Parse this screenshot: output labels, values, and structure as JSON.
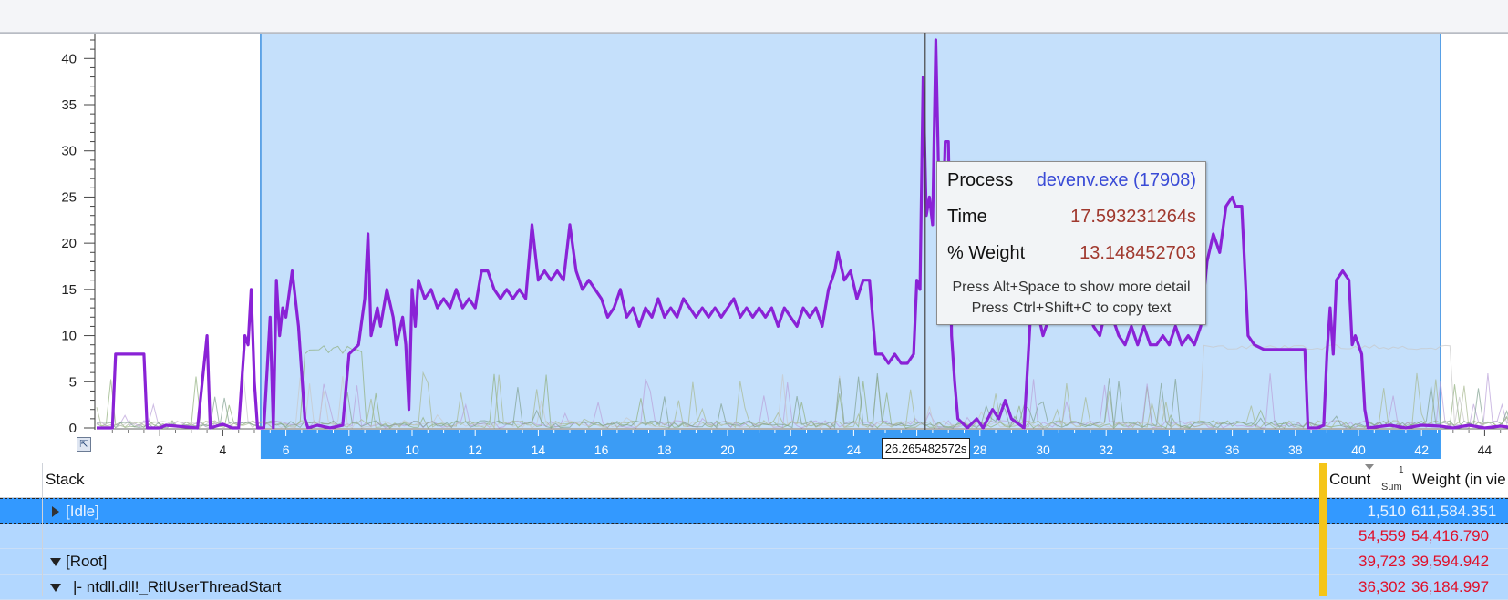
{
  "colors": {
    "selection_band": "#c5e0fb",
    "main_series": "#8a22d6",
    "axis_strip": "#3b9cf5",
    "highlight_column": "#f5c518",
    "tooltip_value": "#a0392e",
    "tooltip_process": "#3a4bd6"
  },
  "chart_data": {
    "type": "line",
    "title": "",
    "xlabel": "",
    "ylabel": "",
    "xlim": [
      0.0,
      45.0
    ],
    "ylim": [
      0,
      42
    ],
    "y_ticks": [
      "0",
      "5",
      "10",
      "15",
      "20",
      "25",
      "30",
      "35",
      "40"
    ],
    "x_ticks": [
      "2",
      "4",
      "6",
      "8",
      "10",
      "12",
      "14",
      "16",
      "18",
      "20",
      "22",
      "24",
      "26",
      "28",
      "30",
      "32",
      "34",
      "36",
      "38",
      "40",
      "42",
      "44"
    ],
    "selection_range": [
      5.2,
      42.6
    ],
    "cursor_time": 26.265482572,
    "series": [
      {
        "color": "#8a22d6",
        "points": [
          [
            0,
            0
          ],
          [
            0.5,
            0
          ],
          [
            0.6,
            8
          ],
          [
            1.5,
            8
          ],
          [
            1.6,
            0
          ],
          [
            2.0,
            0
          ],
          [
            2.2,
            0.3
          ],
          [
            3.2,
            0
          ],
          [
            3.5,
            10
          ],
          [
            3.6,
            0
          ],
          [
            4.0,
            0.4
          ],
          [
            4.3,
            0
          ],
          [
            4.5,
            0
          ],
          [
            4.7,
            10
          ],
          [
            4.8,
            9
          ],
          [
            4.9,
            15
          ],
          [
            5.0,
            5
          ],
          [
            5.1,
            0
          ],
          [
            5.3,
            0
          ],
          [
            5.5,
            12
          ],
          [
            5.6,
            0
          ],
          [
            5.7,
            16
          ],
          [
            5.8,
            10
          ],
          [
            5.9,
            13
          ],
          [
            6.0,
            12
          ],
          [
            6.2,
            17
          ],
          [
            6.4,
            11
          ],
          [
            6.6,
            1
          ],
          [
            6.7,
            0
          ],
          [
            7.0,
            0.3
          ],
          [
            7.4,
            0
          ],
          [
            7.8,
            0.3
          ],
          [
            8.0,
            8
          ],
          [
            8.3,
            9
          ],
          [
            8.5,
            14
          ],
          [
            8.6,
            21
          ],
          [
            8.7,
            10
          ],
          [
            8.9,
            13
          ],
          [
            9.0,
            11
          ],
          [
            9.2,
            15
          ],
          [
            9.4,
            12
          ],
          [
            9.5,
            9
          ],
          [
            9.7,
            12
          ],
          [
            9.8,
            9
          ],
          [
            9.9,
            2
          ],
          [
            10.0,
            15
          ],
          [
            10.1,
            11
          ],
          [
            10.2,
            16
          ],
          [
            10.4,
            14
          ],
          [
            10.6,
            15
          ],
          [
            10.8,
            13
          ],
          [
            11.0,
            14
          ],
          [
            11.2,
            13
          ],
          [
            11.4,
            15
          ],
          [
            11.6,
            13
          ],
          [
            11.8,
            14
          ],
          [
            12.0,
            13
          ],
          [
            12.2,
            17
          ],
          [
            12.4,
            17
          ],
          [
            12.6,
            15
          ],
          [
            12.8,
            14
          ],
          [
            13.0,
            15
          ],
          [
            13.2,
            14
          ],
          [
            13.4,
            15
          ],
          [
            13.6,
            14
          ],
          [
            13.8,
            22
          ],
          [
            14.0,
            16
          ],
          [
            14.2,
            17
          ],
          [
            14.4,
            16
          ],
          [
            14.6,
            17
          ],
          [
            14.8,
            16
          ],
          [
            15.0,
            22
          ],
          [
            15.2,
            17
          ],
          [
            15.4,
            15
          ],
          [
            15.6,
            16
          ],
          [
            15.8,
            15
          ],
          [
            16.0,
            14
          ],
          [
            16.2,
            12
          ],
          [
            16.4,
            13
          ],
          [
            16.6,
            15
          ],
          [
            16.8,
            12
          ],
          [
            17.0,
            13
          ],
          [
            17.2,
            11
          ],
          [
            17.4,
            13
          ],
          [
            17.6,
            12
          ],
          [
            17.8,
            14
          ],
          [
            18.0,
            12
          ],
          [
            18.2,
            13
          ],
          [
            18.4,
            12
          ],
          [
            18.6,
            14
          ],
          [
            18.8,
            13
          ],
          [
            19.0,
            12
          ],
          [
            19.2,
            13
          ],
          [
            19.4,
            12
          ],
          [
            19.6,
            13
          ],
          [
            19.8,
            12
          ],
          [
            20.0,
            13
          ],
          [
            20.2,
            14
          ],
          [
            20.4,
            12
          ],
          [
            20.6,
            13
          ],
          [
            20.8,
            12
          ],
          [
            21.0,
            13
          ],
          [
            21.2,
            12
          ],
          [
            21.4,
            13
          ],
          [
            21.6,
            11
          ],
          [
            21.8,
            13
          ],
          [
            22.0,
            12
          ],
          [
            22.2,
            11
          ],
          [
            22.4,
            13
          ],
          [
            22.6,
            12
          ],
          [
            22.8,
            13
          ],
          [
            23.0,
            11
          ],
          [
            23.2,
            15
          ],
          [
            23.4,
            17
          ],
          [
            23.5,
            19
          ],
          [
            23.7,
            16
          ],
          [
            23.9,
            17
          ],
          [
            24.1,
            14
          ],
          [
            24.3,
            16
          ],
          [
            24.5,
            16
          ],
          [
            24.7,
            8
          ],
          [
            24.9,
            8
          ],
          [
            25.1,
            7
          ],
          [
            25.3,
            8
          ],
          [
            25.5,
            7
          ],
          [
            25.7,
            7
          ],
          [
            25.9,
            8
          ],
          [
            26.0,
            16
          ],
          [
            26.1,
            15
          ],
          [
            26.2,
            38
          ],
          [
            26.3,
            23
          ],
          [
            26.4,
            25
          ],
          [
            26.5,
            22
          ],
          [
            26.6,
            42
          ],
          [
            26.7,
            26
          ],
          [
            26.8,
            19
          ],
          [
            26.9,
            31
          ],
          [
            27.0,
            31
          ],
          [
            27.1,
            10
          ],
          [
            27.2,
            5
          ],
          [
            27.3,
            1
          ],
          [
            27.6,
            0
          ],
          [
            27.9,
            1
          ],
          [
            28.1,
            0
          ],
          [
            28.4,
            2
          ],
          [
            28.6,
            1
          ],
          [
            28.8,
            3
          ],
          [
            29.0,
            1
          ],
          [
            29.2,
            0.5
          ],
          [
            29.4,
            0
          ],
          [
            29.6,
            12
          ],
          [
            29.8,
            13
          ],
          [
            30.0,
            10
          ],
          [
            30.2,
            12
          ],
          [
            30.4,
            13
          ],
          [
            30.6,
            12
          ],
          [
            30.8,
            14
          ],
          [
            31.0,
            13
          ],
          [
            31.2,
            15
          ],
          [
            31.4,
            13
          ],
          [
            31.6,
            11
          ],
          [
            31.8,
            10
          ],
          [
            32.0,
            13
          ],
          [
            32.2,
            12
          ],
          [
            32.4,
            10
          ],
          [
            32.6,
            9
          ],
          [
            32.8,
            11
          ],
          [
            33.0,
            9
          ],
          [
            33.2,
            11
          ],
          [
            33.4,
            9
          ],
          [
            33.6,
            9
          ],
          [
            33.8,
            10
          ],
          [
            34.0,
            9
          ],
          [
            34.2,
            11
          ],
          [
            34.4,
            9
          ],
          [
            34.6,
            10
          ],
          [
            34.8,
            9
          ],
          [
            35.0,
            11
          ],
          [
            35.2,
            18
          ],
          [
            35.4,
            21
          ],
          [
            35.6,
            19
          ],
          [
            35.8,
            24
          ],
          [
            36.0,
            25
          ],
          [
            36.1,
            24
          ],
          [
            36.3,
            24
          ],
          [
            36.5,
            10
          ],
          [
            36.7,
            9
          ],
          [
            37.0,
            8.5
          ],
          [
            37.5,
            8.5
          ],
          [
            38.0,
            8.5
          ],
          [
            38.3,
            8.5
          ],
          [
            38.4,
            0
          ],
          [
            38.7,
            0
          ],
          [
            38.9,
            0.3
          ],
          [
            39.0,
            8
          ],
          [
            39.1,
            13
          ],
          [
            39.2,
            8
          ],
          [
            39.3,
            16
          ],
          [
            39.5,
            17
          ],
          [
            39.7,
            16
          ],
          [
            39.8,
            9
          ],
          [
            39.9,
            10
          ],
          [
            40.0,
            9
          ],
          [
            40.1,
            8
          ],
          [
            40.2,
            2
          ],
          [
            40.3,
            0
          ],
          [
            41.0,
            0.3
          ],
          [
            41.5,
            0
          ],
          [
            42.0,
            0.3
          ],
          [
            42.6,
            0.2
          ],
          [
            43.0,
            0
          ],
          [
            43.5,
            0.3
          ],
          [
            44.0,
            0
          ],
          [
            44.5,
            0.2
          ],
          [
            45.0,
            0
          ]
        ]
      }
    ]
  },
  "graph": {
    "cursor_label": "26.265482572s",
    "zoom_icon": "zoom-to-fit-icon"
  },
  "tooltip": {
    "process_label": "Process",
    "process_value": "devenv.exe (17908)",
    "time_label": "Time",
    "time_value": "17.593231264s",
    "weight_label": "% Weight",
    "weight_value": "13.148452703",
    "hint1": "Press Alt+Space to show more detail",
    "hint2": "Press Ctrl+Shift+C to copy text"
  },
  "table": {
    "headers": {
      "stack": "Stack",
      "count": "Count",
      "count_sort_rank": "1",
      "count_agg": "Sum",
      "weight": "Weight (in vie"
    },
    "rows": [
      {
        "stack": "[Idle]",
        "count": "1,510",
        "weight": "611,584.351",
        "selected": true,
        "expander": "collapsed"
      },
      {
        "stack": "",
        "count": "54,559",
        "weight": "54,416.790",
        "selected": false,
        "expander": "none"
      },
      {
        "stack": "[Root]",
        "count": "39,723",
        "weight": "39,594.942",
        "selected": false,
        "expander": "open"
      },
      {
        "stack": "|- ntdll.dll!_RtlUserThreadStart",
        "count": "36,302",
        "weight": "36,184.997",
        "selected": false,
        "expander": "open"
      }
    ]
  }
}
